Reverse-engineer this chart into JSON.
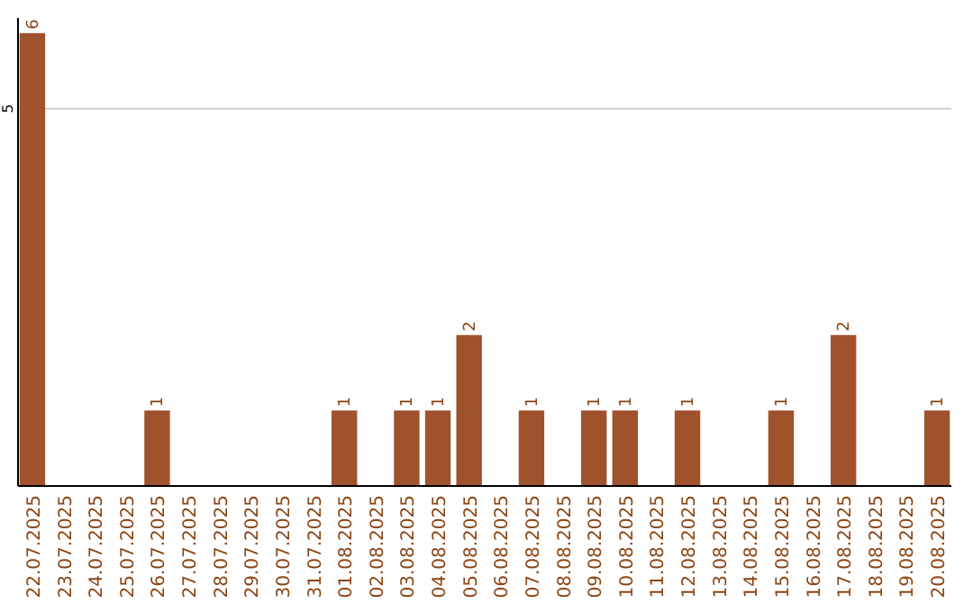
{
  "chart_data": {
    "type": "bar",
    "categories": [
      "22.07.2025",
      "23.07.2025",
      "24.07.2025",
      "25.07.2025",
      "26.07.2025",
      "27.07.2025",
      "28.07.2025",
      "29.07.2025",
      "30.07.2025",
      "31.07.2025",
      "01.08.2025",
      "02.08.2025",
      "03.08.2025",
      "04.08.2025",
      "05.08.2025",
      "06.08.2025",
      "07.08.2025",
      "08.08.2025",
      "09.08.2025",
      "10.08.2025",
      "11.08.2025",
      "12.08.2025",
      "13.08.2025",
      "14.08.2025",
      "15.08.2025",
      "16.08.2025",
      "17.08.2025",
      "18.08.2025",
      "19.08.2025",
      "20.08.2025"
    ],
    "values": [
      6,
      0,
      0,
      0,
      1,
      0,
      0,
      0,
      0,
      0,
      1,
      0,
      1,
      1,
      2,
      0,
      1,
      0,
      1,
      1,
      0,
      1,
      0,
      0,
      1,
      0,
      2,
      0,
      0,
      1
    ],
    "color": "#a0522d",
    "value_labels": [
      "6",
      null,
      null,
      null,
      "1",
      null,
      null,
      null,
      null,
      null,
      "1",
      null,
      "1",
      "1",
      "2",
      null,
      "1",
      null,
      "1",
      "1",
      null,
      "1",
      null,
      null,
      "1",
      null,
      "2",
      null,
      null,
      "1"
    ],
    "ylim": [
      0,
      6.2
    ],
    "yticks": [
      5
    ],
    "grid": "y"
  }
}
